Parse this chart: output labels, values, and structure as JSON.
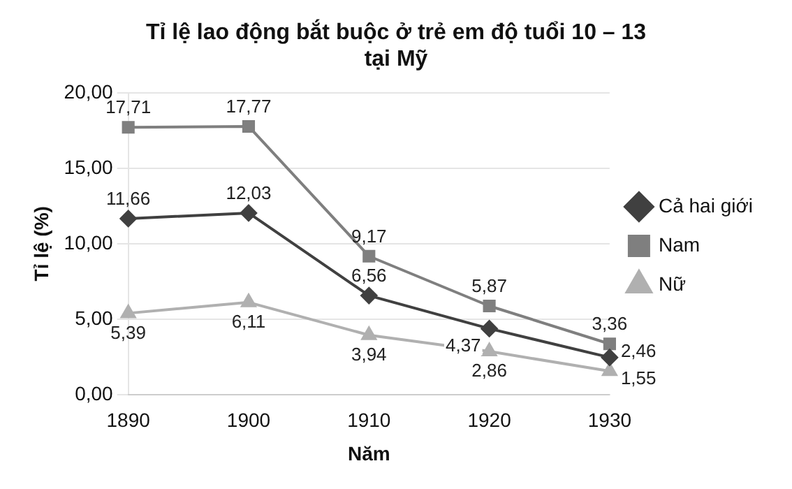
{
  "chart_data": {
    "type": "line",
    "title": "Tỉ lệ lao động bắt buộc ở trẻ em độ tuổi 10 – 13\ntại Mỹ",
    "xlabel": "Năm",
    "ylabel": "Tỉ lệ (%)",
    "categories": [
      "1890",
      "1900",
      "1910",
      "1920",
      "1930"
    ],
    "series": [
      {
        "name": "Cả hai giới",
        "color": "#404040",
        "marker": "diamond",
        "values": [
          11.66,
          12.03,
          6.56,
          4.37,
          2.46
        ],
        "value_labels": [
          "11,66",
          "12,03",
          "6,56",
          "4,37",
          "2,46"
        ]
      },
      {
        "name": "Nam",
        "color": "#7f7f7f",
        "marker": "square",
        "values": [
          17.71,
          17.77,
          9.17,
          5.87,
          3.36
        ],
        "value_labels": [
          "17,71",
          "17,77",
          "9,17",
          "5,87",
          "3,36"
        ]
      },
      {
        "name": "Nữ",
        "color": "#b0b0b0",
        "marker": "triangle",
        "values": [
          5.39,
          6.11,
          3.94,
          2.86,
          1.55
        ],
        "value_labels": [
          "5,39",
          "6,11",
          "3,94",
          "2,86",
          "1,55"
        ]
      }
    ],
    "ylim": [
      0,
      20
    ],
    "yticks": [
      {
        "value": 0,
        "label": "0,00"
      },
      {
        "value": 5,
        "label": "5,00"
      },
      {
        "value": 10,
        "label": "10,00"
      },
      {
        "value": 15,
        "label": "15,00"
      },
      {
        "value": 20,
        "label": "20,00"
      }
    ],
    "grid": "y",
    "legend": "right"
  }
}
